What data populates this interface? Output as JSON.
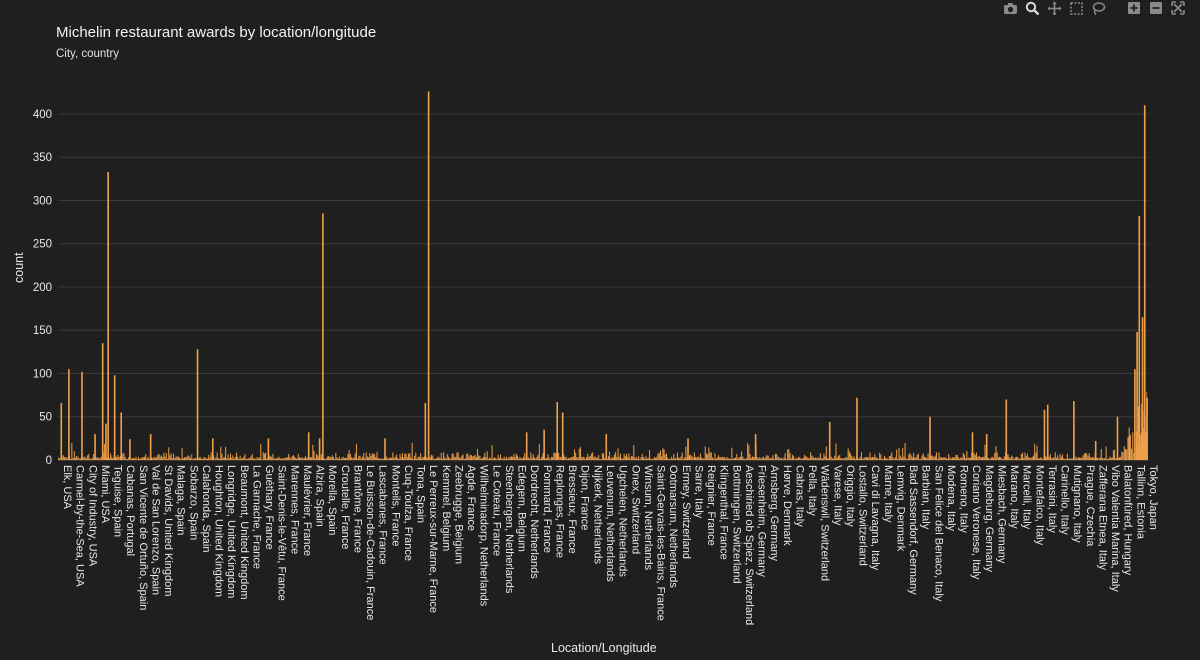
{
  "toolbar": {
    "buttons": [
      {
        "name": "camera-icon",
        "label": "Download plot as a png"
      },
      {
        "name": "zoom-icon",
        "label": "Zoom"
      },
      {
        "name": "pan-icon",
        "label": "Pan"
      },
      {
        "name": "box-select-icon",
        "label": "Box Select"
      },
      {
        "name": "lasso-select-icon",
        "label": "Lasso Select"
      },
      {
        "name": "zoom-in-icon",
        "label": "Zoom in"
      },
      {
        "name": "zoom-out-icon",
        "label": "Zoom out"
      },
      {
        "name": "autoscale-icon",
        "label": "Autoscale"
      }
    ],
    "active": "zoom-icon"
  },
  "colors": {
    "background": "#1f1f1f",
    "bar": "#f0a14a",
    "grid": "#3a3a3a",
    "text": "#e8e8e8"
  },
  "chart_data": {
    "type": "bar",
    "title": "Michelin restaurant awards by location/longitude",
    "subtitle": "City, country",
    "xlabel": "Location/Longitude",
    "ylabel": "count",
    "ylim": [
      0,
      430
    ],
    "yticks": [
      0,
      50,
      100,
      150,
      200,
      250,
      300,
      350,
      400
    ],
    "grid": true,
    "legend": "none",
    "categories": [
      "Elk, USA",
      "Carmel-by-the-Sea, USA",
      "City of Industry, USA",
      "Miami, USA",
      "Teguise, Spain",
      "Cabanas, Portugal",
      "San Vicente de Ortuño, Spain",
      "Val de San Lorenzo, Spain",
      "St Davids, United Kingdom",
      "Malaga, Spain",
      "Sobarzo, Spain",
      "Calahonda, Spain",
      "Houghton, United Kingdom",
      "Longridge, United Kingdom",
      "Beaumont, United Kingdom",
      "La Garnache, France",
      "Guéthary, France",
      "Saint-Denis-le-Vêtu, France",
      "Marennes, France",
      "Maulévrier, France",
      "Alzira, Spain",
      "Morella, Spain",
      "Croutelle, France",
      "Brantôme, France",
      "Le Buisson-de-Cadouin, France",
      "Lascabanes, France",
      "Monteils, France",
      "Cuq-Toulza, France",
      "Tona, Spain",
      "Le Perreux-sur-Marne, France",
      "Kemmel, Belgium",
      "Zeebrugge, Belgium",
      "Agde, France",
      "Wilhelminadorp, Netherlands",
      "Le Coteau, France",
      "Steenbergen, Netherlands",
      "Edegem, Belgium",
      "Dordrecht, Netherlands",
      "Pommard, France",
      "Replonges, France",
      "Bressieux, France",
      "Dijon, France",
      "Nijkerk, Netherlands",
      "Leuvenum, Netherlands",
      "Ugchelen, Netherlands",
      "Onex, Switzerland",
      "Winsum, Netherlands",
      "Saint-Gervais-les-Bains, France",
      "Ootmarsum, Netherlands",
      "Ermey, Switzerland",
      "Sarre, Italy",
      "Reignier, France",
      "Klingenthal, France",
      "Bottmingen, Switzerland",
      "Aeschiried ob Spiez, Switzerland",
      "Friesenheim, Germany",
      "Arnsberg, Germany",
      "Hørve, Denmark",
      "Cabras, Italy",
      "Pella, Italy",
      "Wädenswil, Switzerland",
      "Varese, Italy",
      "Origgio, Italy",
      "Lostallo, Switzerland",
      "Cavi di Lavagna, Italy",
      "Marne, Italy",
      "Lemvig, Denmark",
      "Bad Sassendorf, Germany",
      "Barbian, Italy",
      "San Felice del Benaco, Italy",
      "Modena, Italy",
      "Romeno, Italy",
      "Coriano Veronese, Italy",
      "Magdeburg, Germany",
      "Miesbach, Germany",
      "Marano, Italy",
      "Marcelli, Italy",
      "Montefalco, Italy",
      "Terrasini, Italy",
      "Carinello, Italy",
      "Mutignano, Italy",
      "Prague, Czechia",
      "Zafferana Etnea, Italy",
      "Vibo Valentia Marina, Italy",
      "Balatonfüred, Hungary",
      "Tallinn, Estonia",
      "Tokyo, Japan"
    ],
    "peaks": [
      {
        "pos": 0.003,
        "value": 66
      },
      {
        "pos": 0.01,
        "value": 105
      },
      {
        "pos": 0.022,
        "value": 102
      },
      {
        "pos": 0.034,
        "value": 30
      },
      {
        "pos": 0.041,
        "value": 135
      },
      {
        "pos": 0.044,
        "value": 42
      },
      {
        "pos": 0.046,
        "value": 333
      },
      {
        "pos": 0.052,
        "value": 98
      },
      {
        "pos": 0.058,
        "value": 55
      },
      {
        "pos": 0.066,
        "value": 24
      },
      {
        "pos": 0.085,
        "value": 30
      },
      {
        "pos": 0.128,
        "value": 128
      },
      {
        "pos": 0.142,
        "value": 25
      },
      {
        "pos": 0.193,
        "value": 25
      },
      {
        "pos": 0.23,
        "value": 32
      },
      {
        "pos": 0.24,
        "value": 25
      },
      {
        "pos": 0.243,
        "value": 285
      },
      {
        "pos": 0.3,
        "value": 25
      },
      {
        "pos": 0.337,
        "value": 66
      },
      {
        "pos": 0.34,
        "value": 426
      },
      {
        "pos": 0.43,
        "value": 32
      },
      {
        "pos": 0.446,
        "value": 35
      },
      {
        "pos": 0.458,
        "value": 67
      },
      {
        "pos": 0.463,
        "value": 55
      },
      {
        "pos": 0.503,
        "value": 30
      },
      {
        "pos": 0.578,
        "value": 25
      },
      {
        "pos": 0.64,
        "value": 30
      },
      {
        "pos": 0.708,
        "value": 44
      },
      {
        "pos": 0.733,
        "value": 72
      },
      {
        "pos": 0.8,
        "value": 50
      },
      {
        "pos": 0.839,
        "value": 32
      },
      {
        "pos": 0.852,
        "value": 30
      },
      {
        "pos": 0.87,
        "value": 70
      },
      {
        "pos": 0.905,
        "value": 58
      },
      {
        "pos": 0.908,
        "value": 64
      },
      {
        "pos": 0.932,
        "value": 68
      },
      {
        "pos": 0.952,
        "value": 22
      },
      {
        "pos": 0.972,
        "value": 50
      },
      {
        "pos": 0.983,
        "value": 28
      },
      {
        "pos": 0.988,
        "value": 105
      },
      {
        "pos": 0.99,
        "value": 148
      },
      {
        "pos": 0.992,
        "value": 282
      },
      {
        "pos": 0.995,
        "value": 165
      },
      {
        "pos": 0.997,
        "value": 410
      },
      {
        "pos": 0.999,
        "value": 72
      }
    ],
    "baseline_note": "many narrow bars with counts mostly between 1 and 12"
  }
}
